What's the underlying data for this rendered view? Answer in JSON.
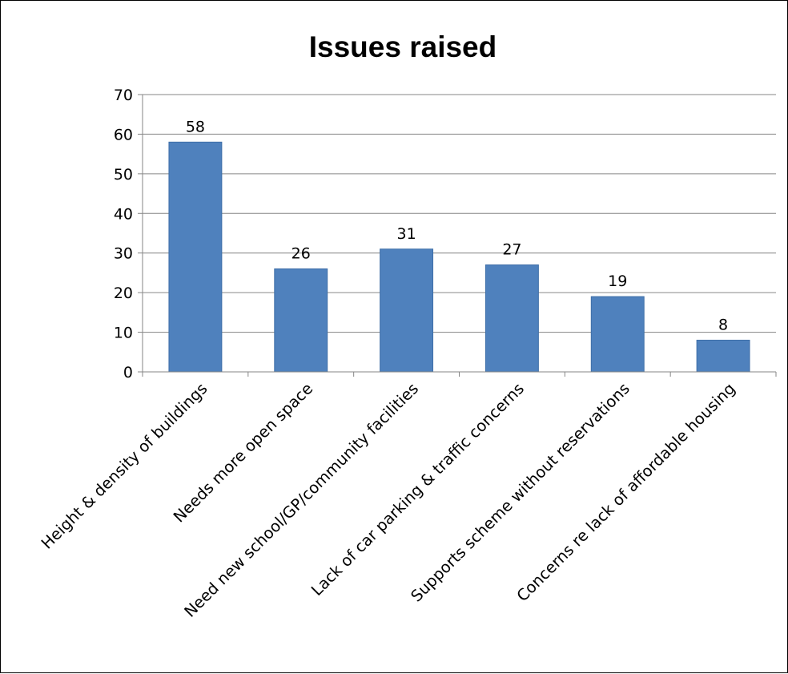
{
  "chart_data": {
    "type": "bar",
    "title": "Issues raised",
    "xlabel": "",
    "ylabel": "",
    "categories": [
      "Height & density of buildings",
      "Needs more open space",
      "Need new school/GP/community facilities",
      "Lack of car parking & traffic concerns",
      "Supports scheme without reservations",
      "Concerns re lack of affordable housing"
    ],
    "series": [
      {
        "values": [
          58,
          26,
          31,
          27,
          19,
          8
        ]
      }
    ],
    "ylim": [
      0,
      70
    ],
    "yticks": [
      0,
      10,
      20,
      30,
      40,
      50,
      60,
      70
    ],
    "grid": true,
    "legend": "none",
    "data_labels": true,
    "bar_color": "#4F81BD",
    "bar_edge_color": "#3F6FA8",
    "gridline_color": "#868686"
  }
}
